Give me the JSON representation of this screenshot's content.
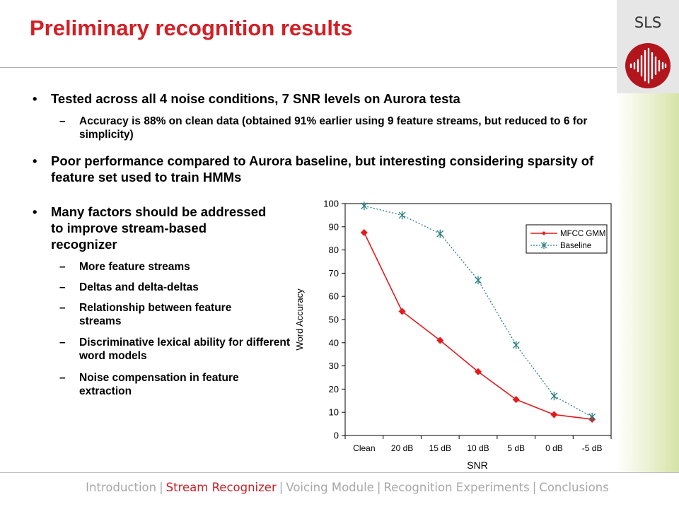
{
  "slide": {
    "title": "Preliminary recognition results",
    "logo_text": "SLS",
    "bullets": [
      {
        "text": "Tested across all 4 noise conditions, 7 SNR levels on Aurora testa"
      },
      {
        "text": "Accuracy is 88% on clean data (obtained 91% earlier using 9 feature streams, but reduced to 6 for simplicity)"
      },
      {
        "text": "Poor performance compared to Aurora baseline, but interesting considering sparsity of feature set used to train HMMs"
      },
      {
        "text": "Many factors should be addressed to improve stream-based recognizer"
      },
      {
        "text": "More feature streams"
      },
      {
        "text": "Deltas and delta-deltas"
      },
      {
        "text": "Relationship between feature streams"
      },
      {
        "text": "Discriminative lexical ability for different word models"
      },
      {
        "text": "Noise compensation in feature extraction"
      }
    ]
  },
  "footer": {
    "items": [
      "Introduction",
      "Stream Recognizer",
      "Voicing Module",
      "Recognition Experiments",
      "Conclusions"
    ],
    "active_index": 1,
    "separator": "|"
  },
  "colors": {
    "title": "#d21f26",
    "series1": "#e41a1c",
    "series2": "#2a7c80",
    "active_footer": "#c82027"
  },
  "chart_data": {
    "type": "line",
    "categories": [
      "Clean",
      "20 dB",
      "15 dB",
      "10 dB",
      "5 dB",
      "0 dB",
      "-5 dB"
    ],
    "series": [
      {
        "name": "MFCC GMM",
        "values": [
          87.5,
          53.5,
          41,
          27.5,
          15.5,
          9,
          7
        ],
        "marker": "diamond",
        "style": "solid"
      },
      {
        "name": "Baseline",
        "values": [
          99,
          95,
          87,
          67,
          39,
          17,
          8
        ],
        "marker": "asterisk",
        "style": "dotted"
      }
    ],
    "xlabel": "SNR",
    "ylabel": "Word Accuracy",
    "ylim": [
      0,
      100
    ],
    "yticks": [
      0,
      10,
      20,
      30,
      40,
      50,
      60,
      70,
      80,
      90,
      100
    ],
    "grid": false,
    "legend": "top-right"
  }
}
